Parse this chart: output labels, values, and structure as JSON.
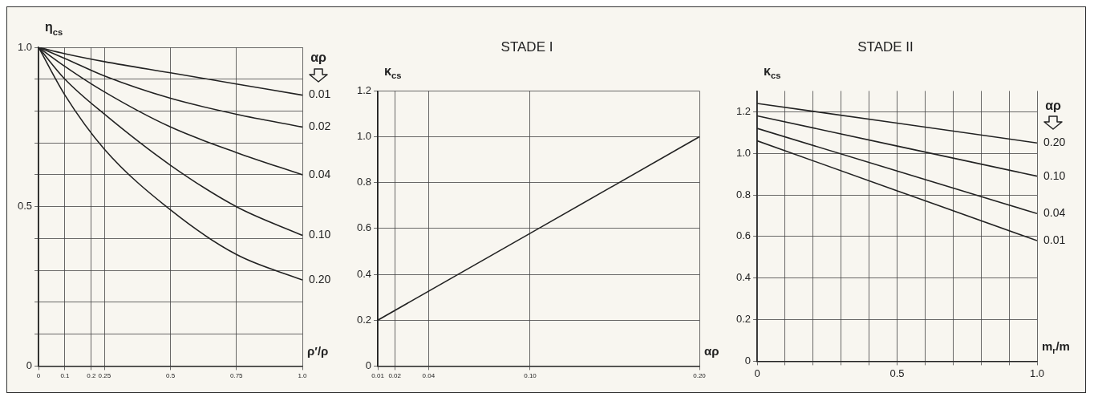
{
  "chart_data": [
    {
      "type": "line",
      "xlabel": "ρ′/ρ",
      "ylabel": "η$_{cs}$",
      "legend_title": "αρ",
      "x": [
        0,
        0.1,
        0.25,
        0.5,
        0.75,
        1.0
      ],
      "xlim": [
        0,
        1.0
      ],
      "xticks": [
        0,
        0.1,
        0.2,
        0.25,
        0.5,
        0.75,
        {
          "value": 1.0,
          "label": "1.0"
        }
      ],
      "ylim": [
        0,
        1.0
      ],
      "yticks": [
        0,
        {
          "value": 0.1,
          "label": null
        },
        {
          "value": 0.2,
          "label": null
        },
        {
          "value": 0.3,
          "label": null
        },
        {
          "value": 0.4,
          "label": null
        },
        0.5,
        {
          "value": 0.6,
          "label": null
        },
        {
          "value": 0.7,
          "label": null
        },
        {
          "value": 0.8,
          "label": null
        },
        {
          "value": 0.9,
          "label": null
        },
        {
          "value": 1.0,
          "label": "1.0"
        }
      ],
      "grid": true,
      "series": [
        {
          "name": "0.01",
          "color": "#222222",
          "values": [
            1.0,
            0.98,
            0.955,
            0.92,
            0.885,
            0.85
          ]
        },
        {
          "name": "0.02",
          "color": "#222222",
          "values": [
            1.0,
            0.965,
            0.91,
            0.84,
            0.79,
            0.75
          ]
        },
        {
          "name": "0.04",
          "color": "#222222",
          "values": [
            1.0,
            0.94,
            0.86,
            0.75,
            0.67,
            0.6
          ]
        },
        {
          "name": "0.10",
          "color": "#222222",
          "values": [
            1.0,
            0.9,
            0.79,
            0.63,
            0.5,
            0.41
          ]
        },
        {
          "name": "0.20",
          "color": "#222222",
          "values": [
            1.0,
            0.85,
            0.68,
            0.49,
            0.35,
            0.27
          ]
        }
      ]
    },
    {
      "type": "line",
      "title": "STADE I",
      "xlabel": "αρ",
      "ylabel": "κ$_{cs}$",
      "x": [
        0.01,
        0.2
      ],
      "xlim": [
        0.01,
        0.2
      ],
      "xticks": [
        {
          "value": 0.01,
          "label": "0.01"
        },
        {
          "value": 0.02,
          "label": "0.02"
        },
        {
          "value": 0.04,
          "label": "0.04"
        },
        {
          "value": 0.1,
          "label": "0.10"
        },
        {
          "value": 0.2,
          "label": "0.20"
        }
      ],
      "ylim": [
        0,
        1.2
      ],
      "yticks": [
        0,
        0.2,
        0.4,
        0.6,
        0.8,
        {
          "value": 1.0,
          "label": "1.0"
        },
        1.2
      ],
      "grid": true,
      "series": [
        {
          "color": "#222222",
          "values": [
            0.2,
            1.0
          ]
        }
      ]
    },
    {
      "type": "line",
      "title": "STADE II",
      "xlabel": "m$_{r}$/m",
      "ylabel": "κ$_{cs}$",
      "legend_title": "αρ",
      "x": [
        0,
        1.0
      ],
      "xlim": [
        0,
        1.0
      ],
      "xticks": [
        0,
        {
          "value": 0.1,
          "label": null
        },
        {
          "value": 0.2,
          "label": null
        },
        {
          "value": 0.3,
          "label": null
        },
        {
          "value": 0.4,
          "label": null
        },
        0.5,
        {
          "value": 0.6,
          "label": null
        },
        {
          "value": 0.7,
          "label": null
        },
        {
          "value": 0.8,
          "label": null
        },
        {
          "value": 0.9,
          "label": null
        },
        {
          "value": 1.0,
          "label": "1.0"
        }
      ],
      "ylim": [
        0,
        1.3
      ],
      "yticks": [
        0,
        0.2,
        0.4,
        0.6,
        0.8,
        {
          "value": 1.0,
          "label": "1.0"
        },
        1.2
      ],
      "grid": true,
      "series": [
        {
          "name": "0.20",
          "color": "#222222",
          "values": [
            1.24,
            1.05
          ]
        },
        {
          "name": "0.10",
          "color": "#222222",
          "values": [
            1.18,
            0.89
          ]
        },
        {
          "name": "0.04",
          "color": "#222222",
          "values": [
            1.12,
            0.71
          ]
        },
        {
          "name": "0.01",
          "color": "#222222",
          "values": [
            1.06,
            0.58
          ]
        }
      ]
    }
  ]
}
